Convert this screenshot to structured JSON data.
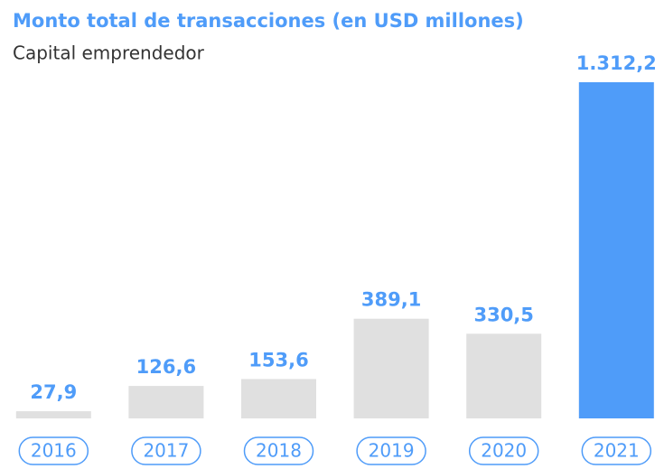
{
  "chart_data": {
    "type": "bar",
    "title": "Monto total de transacciones (en USD millones)",
    "subtitle": "Capital emprendedor",
    "categories": [
      "2016",
      "2017",
      "2018",
      "2019",
      "2020",
      "2021"
    ],
    "values": [
      27.9,
      126.6,
      153.6,
      389.1,
      330.5,
      1312.2
    ],
    "value_labels": [
      "27,9",
      "126,6",
      "153,6",
      "389,1",
      "330,5",
      "1.312,2"
    ],
    "colors": [
      "#e0e0e0",
      "#e0e0e0",
      "#e0e0e0",
      "#e0e0e0",
      "#e0e0e0",
      "#4f9cf9"
    ],
    "label_color": "#4f9cf9"
  }
}
